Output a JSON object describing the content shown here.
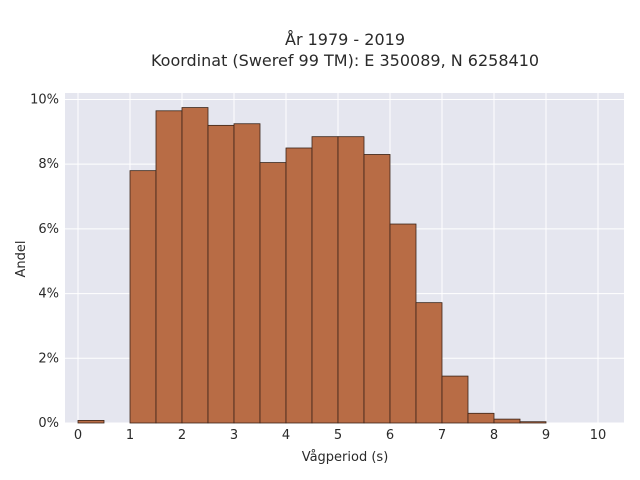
{
  "chart_data": {
    "type": "bar",
    "title_line1": "År 1979 - 2019",
    "title_line2": "Koordinat (Sweref 99 TM): E 350089, N 6258410",
    "xlabel": "Vågperiod (s)",
    "ylabel": "Andel",
    "xlim": [
      -0.25,
      10.5
    ],
    "ylim": [
      0,
      10.2
    ],
    "x_ticks": [
      0,
      1,
      2,
      3,
      4,
      5,
      6,
      7,
      8,
      9,
      10
    ],
    "y_ticks": [
      0,
      2,
      4,
      6,
      8,
      10
    ],
    "y_tick_labels": [
      "0%",
      "2%",
      "4%",
      "6%",
      "8%",
      "10%"
    ],
    "bin_width": 0.5,
    "bins": [
      {
        "start": 0.0,
        "value": 0.08
      },
      {
        "start": 0.5,
        "value": 0.0
      },
      {
        "start": 1.0,
        "value": 7.8
      },
      {
        "start": 1.5,
        "value": 9.65
      },
      {
        "start": 2.0,
        "value": 9.75
      },
      {
        "start": 2.5,
        "value": 9.2
      },
      {
        "start": 3.0,
        "value": 9.25
      },
      {
        "start": 3.5,
        "value": 8.05
      },
      {
        "start": 4.0,
        "value": 8.5
      },
      {
        "start": 4.5,
        "value": 8.85
      },
      {
        "start": 5.0,
        "value": 8.85
      },
      {
        "start": 5.5,
        "value": 8.3
      },
      {
        "start": 6.0,
        "value": 6.15
      },
      {
        "start": 6.5,
        "value": 3.72
      },
      {
        "start": 7.0,
        "value": 1.45
      },
      {
        "start": 7.5,
        "value": 0.3
      },
      {
        "start": 8.0,
        "value": 0.12
      },
      {
        "start": 8.5,
        "value": 0.04
      },
      {
        "start": 9.0,
        "value": 0.0
      },
      {
        "start": 9.5,
        "value": 0.0
      }
    ],
    "bar_color": "#b86c45",
    "bar_edge_color": "#3a2418",
    "plot_background": "#e5e6ef",
    "grid": true
  }
}
